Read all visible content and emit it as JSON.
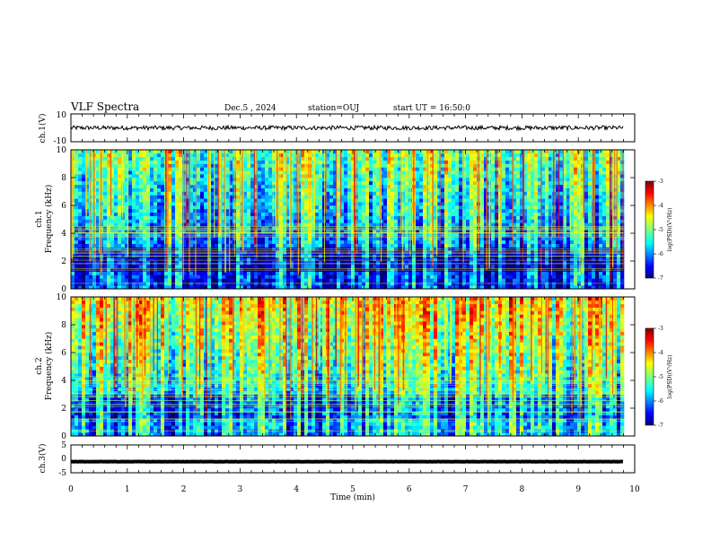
{
  "header": {
    "title": "VLF Spectra",
    "date": "Dec.5 , 2024",
    "station": "station=OUJ",
    "start": "start UT = 16:50:0"
  },
  "chart_data": [
    {
      "type": "line",
      "name": "ch1-waveform",
      "ylabel": "ch.1(V)",
      "ylim": [
        -10,
        10
      ],
      "yticklabels": [
        "10",
        "-10"
      ],
      "description_values": {
        "mean": 0,
        "amplitude": 1.5
      }
    },
    {
      "type": "heatmap",
      "name": "ch1-spectrogram",
      "ylabel_line1": "ch.1",
      "ylabel_line2": "Frequency (kHz)",
      "ylim": [
        0,
        10
      ],
      "yticklabels": [
        "0",
        "2",
        "4",
        "6",
        "8",
        "10"
      ],
      "colorbar": {
        "label": "log(PSD)(V²/Hz)",
        "range": [
          -7,
          -3
        ],
        "ticks": [
          "-3",
          "-4",
          "-5",
          "-6",
          "-7"
        ]
      }
    },
    {
      "type": "heatmap",
      "name": "ch2-spectrogram",
      "ylabel_line1": "ch.2",
      "ylabel_line2": "Frequency (kHz)",
      "ylim": [
        0,
        10
      ],
      "yticklabels": [
        "0",
        "2",
        "4",
        "6",
        "8",
        "10"
      ],
      "colorbar": {
        "label": "log(PSD)(V²/Hz)",
        "range": [
          -7,
          -3
        ],
        "ticks": [
          "-3",
          "-4",
          "-5",
          "-6",
          "-7"
        ]
      }
    },
    {
      "type": "line",
      "name": "ch3-waveform",
      "ylabel": "ch.3(V)",
      "ylim": [
        -5,
        5
      ],
      "yticklabels": [
        "5",
        "0",
        "-5"
      ],
      "description_values": {
        "mean": -1,
        "amplitude": 0.2
      }
    }
  ],
  "xaxis": {
    "xlabel": "Time (min)",
    "xlim": [
      0,
      10
    ],
    "xticklabels": [
      "0",
      "1",
      "2",
      "3",
      "4",
      "5",
      "6",
      "7",
      "8",
      "9",
      "10"
    ],
    "data_end": 9.8
  },
  "colors": {
    "noise_floor": "#0a1a8a",
    "jet_stops": [
      "#00007f",
      "#0000ff",
      "#00ffff",
      "#7fff7f",
      "#ffff00",
      "#ff0000",
      "#7f0000"
    ]
  }
}
